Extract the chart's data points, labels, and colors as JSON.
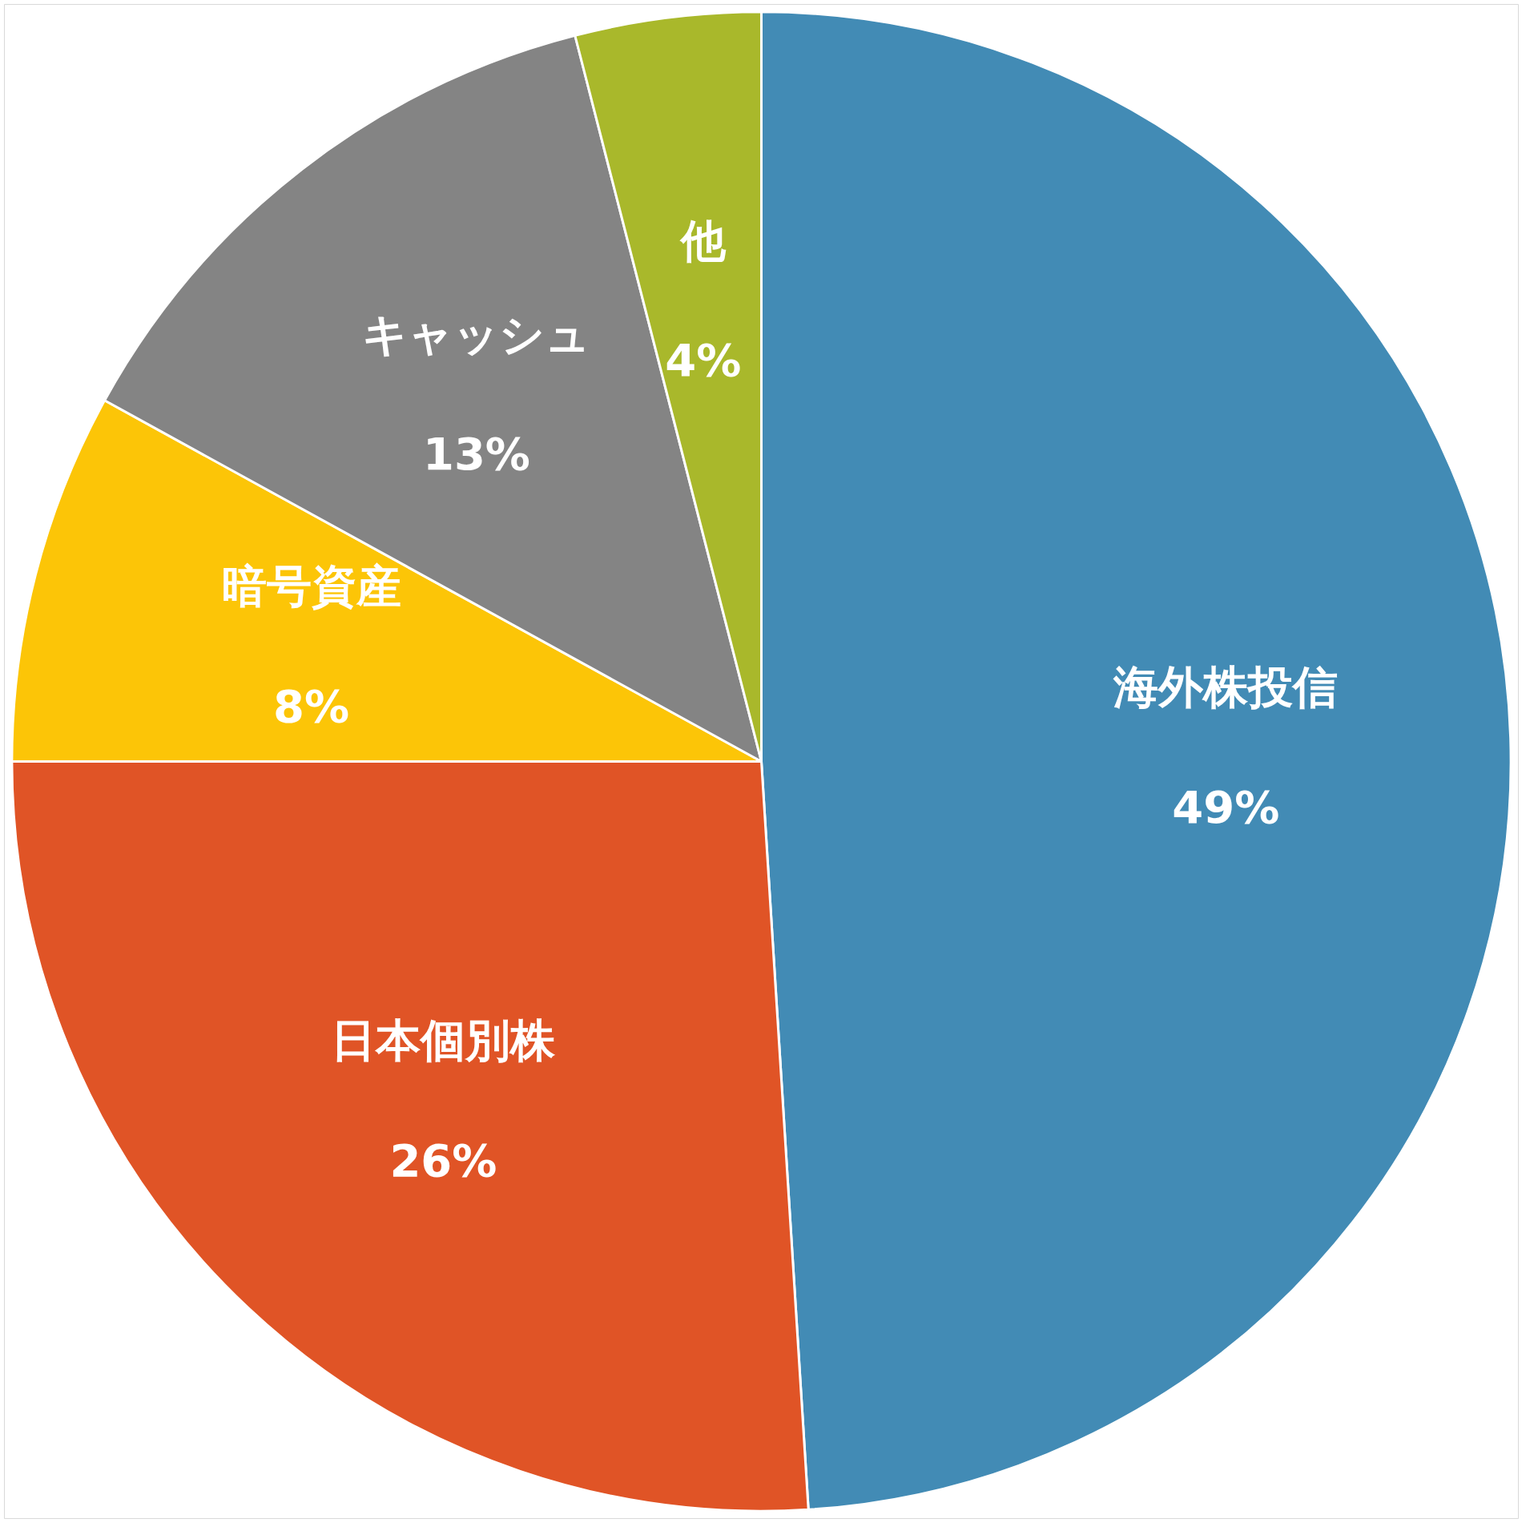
{
  "chart_data": {
    "type": "pie",
    "categories": [
      "海外株投信",
      "日本個別株",
      "暗号資産",
      "キャッシュ",
      "他"
    ],
    "values": [
      49,
      26,
      8,
      13,
      4
    ],
    "colors": [
      "#428bb5",
      "#e05426",
      "#fcc507",
      "#848484",
      "#a9b82b"
    ],
    "value_labels": [
      "49%",
      "26%",
      "8%",
      "13%",
      "4%"
    ]
  }
}
